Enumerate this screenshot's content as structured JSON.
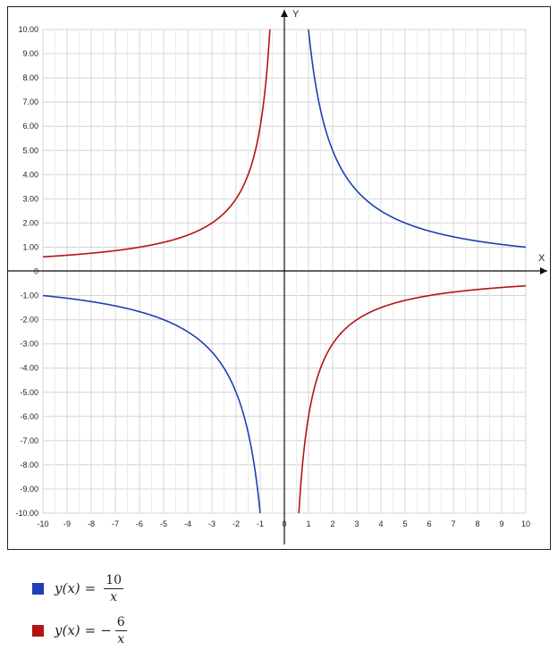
{
  "chart_data": {
    "type": "line",
    "title": "",
    "xlabel": "X",
    "ylabel": "Y",
    "xlim": [
      -10,
      10
    ],
    "ylim": [
      -10,
      10
    ],
    "grid": true,
    "x_ticks": [
      -10,
      -9,
      -8,
      -7,
      -6,
      -5,
      -4,
      -3,
      -2,
      -1,
      0,
      1,
      2,
      3,
      4,
      5,
      6,
      7,
      8,
      9,
      10
    ],
    "x_tick_labels": [
      "-10",
      "-9",
      "-8",
      "-7",
      "-6",
      "-5",
      "-4",
      "-3",
      "-2",
      "-1",
      "0",
      "1",
      "2",
      "3",
      "4",
      "5",
      "6",
      "7",
      "8",
      "9",
      "10"
    ],
    "y_ticks": [
      10,
      9,
      8,
      7,
      6,
      5,
      4,
      3,
      2,
      1,
      0,
      -1,
      -2,
      -3,
      -4,
      -5,
      -6,
      -7,
      -8,
      -9,
      -10
    ],
    "y_tick_labels": [
      "10.00",
      "9.00",
      "8.00",
      "7.00",
      "6.00",
      "5.00",
      "4.00",
      "3.00",
      "2.00",
      "1.00",
      "0",
      "-1.00",
      "-2.00",
      "-3.00",
      "-4.00",
      "-5.00",
      "-6.00",
      "-7.00",
      "-8.00",
      "-9.00",
      "-10.00"
    ],
    "series": [
      {
        "formula": "10/x",
        "k": 10,
        "color": "#1f3fb5",
        "legend": {
          "lhs": "y(x)",
          "sign": "",
          "num": "10",
          "den": "x"
        }
      },
      {
        "formula": "-6/x",
        "k": -6,
        "color": "#b51414",
        "legend": {
          "lhs": "y(x)",
          "sign": "−",
          "num": "6",
          "den": "x"
        }
      }
    ],
    "legend_position": "bottom-left"
  }
}
